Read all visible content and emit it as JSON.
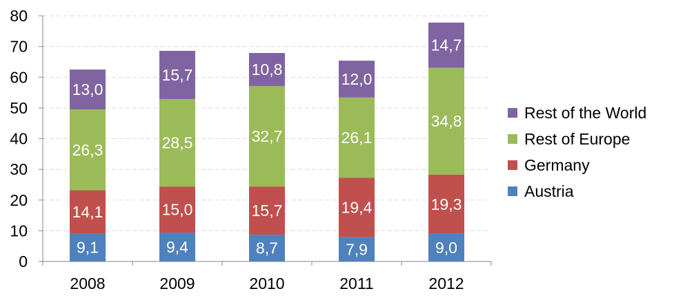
{
  "chart_data": {
    "type": "bar",
    "stacked": true,
    "categories": [
      "2008",
      "2009",
      "2010",
      "2011",
      "2012"
    ],
    "series": [
      {
        "name": "Austria",
        "color": "#4F81BD",
        "values": [
          9.1,
          9.4,
          8.7,
          7.9,
          9.0
        ],
        "labels": [
          "9,1",
          "9,4",
          "8,7",
          "7,9",
          "9,0"
        ]
      },
      {
        "name": "Germany",
        "color": "#C0504D",
        "values": [
          14.1,
          15.0,
          15.7,
          19.4,
          19.3
        ],
        "labels": [
          "14,1",
          "15,0",
          "15,7",
          "19,4",
          "19,3"
        ]
      },
      {
        "name": "Rest of Europe",
        "color": "#9BBB59",
        "values": [
          26.3,
          28.5,
          32.7,
          26.1,
          34.8
        ],
        "labels": [
          "26,3",
          "28,5",
          "32,7",
          "26,1",
          "34,8"
        ]
      },
      {
        "name": "Rest of the World",
        "color": "#8064A2",
        "values": [
          13.0,
          15.7,
          10.8,
          12.0,
          14.7
        ],
        "labels": [
          "13,0",
          "15,7",
          "10,8",
          "12,0",
          "14,7"
        ]
      }
    ],
    "ylim": [
      0,
      80
    ],
    "yticks": [
      "0",
      "10",
      "20",
      "30",
      "40",
      "50",
      "60",
      "70",
      "80"
    ],
    "grid": true,
    "legend_position": "right",
    "legend_order": [
      "Rest of the World",
      "Rest of Europe",
      "Germany",
      "Austria"
    ],
    "title": "",
    "xlabel": "",
    "ylabel": ""
  }
}
